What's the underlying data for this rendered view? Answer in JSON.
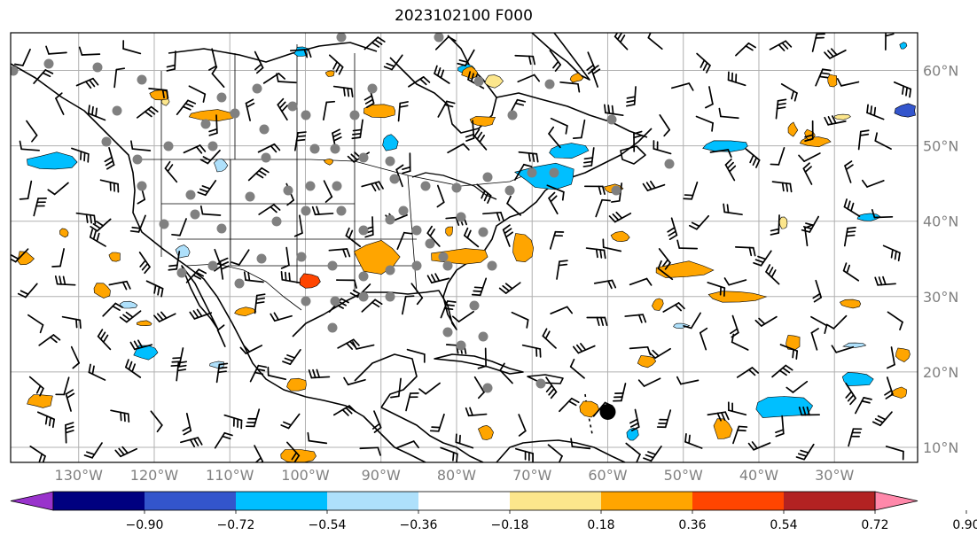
{
  "title": "2023102100 F000",
  "map": {
    "lon_range": [
      -139,
      -19
    ],
    "lat_range": [
      8,
      65
    ],
    "lon_labels": [
      "130°W",
      "120°W",
      "110°W",
      "100°W",
      "90°W",
      "80°W",
      "70°W",
      "60°W",
      "50°W",
      "40°W",
      "30°W"
    ],
    "lat_labels": [
      "10°N",
      "20°N",
      "30°N",
      "40°N",
      "50°N",
      "60°N"
    ],
    "grid": true,
    "marker": {
      "lon": -60,
      "lat": 14.7,
      "color": "#000000"
    },
    "station_color": "#808080"
  },
  "colorbar": {
    "colors": [
      "#9933cc",
      "#000080",
      "#3355cc",
      "#00bfff",
      "#aee0fb",
      "#ffffff",
      "#fce68c",
      "#ffa500",
      "#ff4500",
      "#b22222",
      "#ff88aa"
    ],
    "ticks": [
      "−0.90",
      "−0.72",
      "−0.54",
      "−0.36",
      "−0.18",
      "0.18",
      "0.36",
      "0.54",
      "0.72",
      "0.90"
    ]
  }
}
